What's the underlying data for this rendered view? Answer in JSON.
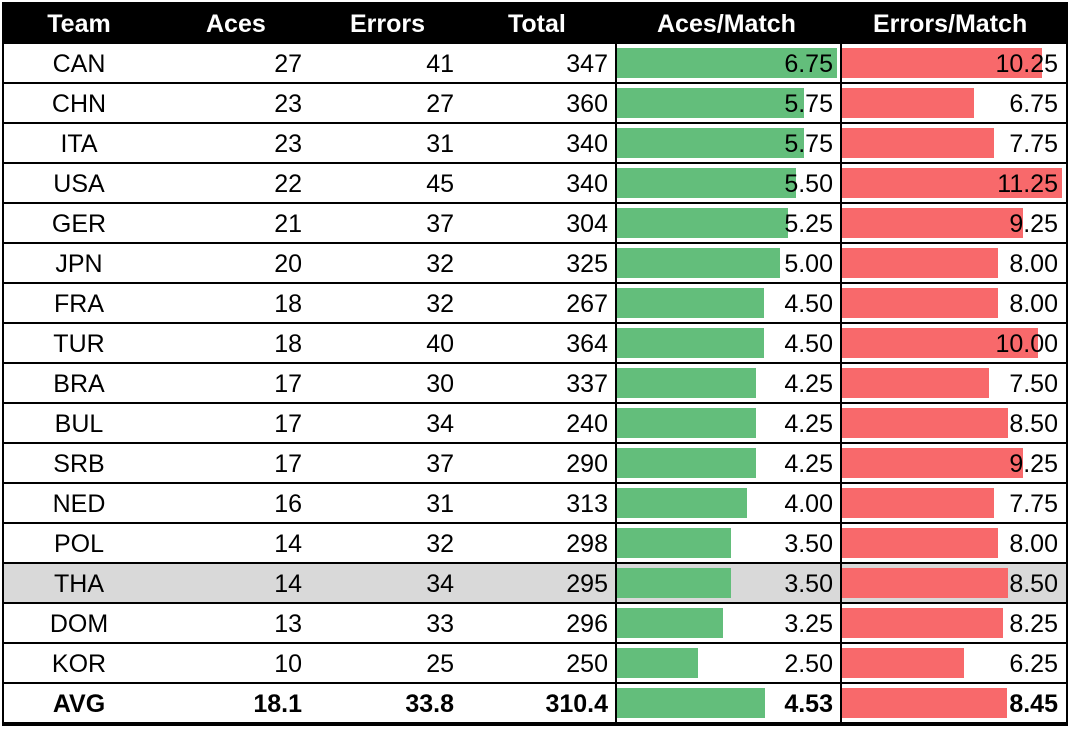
{
  "chart_data": {
    "type": "table",
    "columns": [
      "Team",
      "Aces",
      "Errors",
      "Total",
      "Aces/Match",
      "Errors/Match"
    ],
    "rows": [
      {
        "team": "CAN",
        "aces": "27",
        "errors": "41",
        "total": "347",
        "aces_match": "6.75",
        "errors_match": "10.25"
      },
      {
        "team": "CHN",
        "aces": "23",
        "errors": "27",
        "total": "360",
        "aces_match": "5.75",
        "errors_match": "6.75"
      },
      {
        "team": "ITA",
        "aces": "23",
        "errors": "31",
        "total": "340",
        "aces_match": "5.75",
        "errors_match": "7.75"
      },
      {
        "team": "USA",
        "aces": "22",
        "errors": "45",
        "total": "340",
        "aces_match": "5.50",
        "errors_match": "11.25"
      },
      {
        "team": "GER",
        "aces": "21",
        "errors": "37",
        "total": "304",
        "aces_match": "5.25",
        "errors_match": "9.25"
      },
      {
        "team": "JPN",
        "aces": "20",
        "errors": "32",
        "total": "325",
        "aces_match": "5.00",
        "errors_match": "8.00"
      },
      {
        "team": "FRA",
        "aces": "18",
        "errors": "32",
        "total": "267",
        "aces_match": "4.50",
        "errors_match": "8.00"
      },
      {
        "team": "TUR",
        "aces": "18",
        "errors": "40",
        "total": "364",
        "aces_match": "4.50",
        "errors_match": "10.00"
      },
      {
        "team": "BRA",
        "aces": "17",
        "errors": "30",
        "total": "337",
        "aces_match": "4.25",
        "errors_match": "7.50"
      },
      {
        "team": "BUL",
        "aces": "17",
        "errors": "34",
        "total": "240",
        "aces_match": "4.25",
        "errors_match": "8.50"
      },
      {
        "team": "SRB",
        "aces": "17",
        "errors": "37",
        "total": "290",
        "aces_match": "4.25",
        "errors_match": "9.25"
      },
      {
        "team": "NED",
        "aces": "16",
        "errors": "31",
        "total": "313",
        "aces_match": "4.00",
        "errors_match": "7.75"
      },
      {
        "team": "POL",
        "aces": "14",
        "errors": "32",
        "total": "298",
        "aces_match": "3.50",
        "errors_match": "8.00"
      },
      {
        "team": "THA",
        "aces": "14",
        "errors": "34",
        "total": "295",
        "aces_match": "3.50",
        "errors_match": "8.50",
        "highlighted": true
      },
      {
        "team": "DOM",
        "aces": "13",
        "errors": "33",
        "total": "296",
        "aces_match": "3.25",
        "errors_match": "8.25"
      },
      {
        "team": "KOR",
        "aces": "10",
        "errors": "25",
        "total": "250",
        "aces_match": "2.50",
        "errors_match": "6.25"
      }
    ],
    "summary": {
      "team": "AVG",
      "aces": "18.1",
      "errors": "33.8",
      "total": "310.4",
      "aces_match": "4.53",
      "errors_match": "8.45"
    },
    "databar_max": {
      "aces_match": 6.75,
      "errors_match": 11.25
    }
  },
  "colors": {
    "header_bg": "#000000",
    "header_text": "#ffffff",
    "aces_bar": "#63be7b",
    "errors_bar": "#f8696b",
    "highlight_row": "#d9d9d9"
  }
}
